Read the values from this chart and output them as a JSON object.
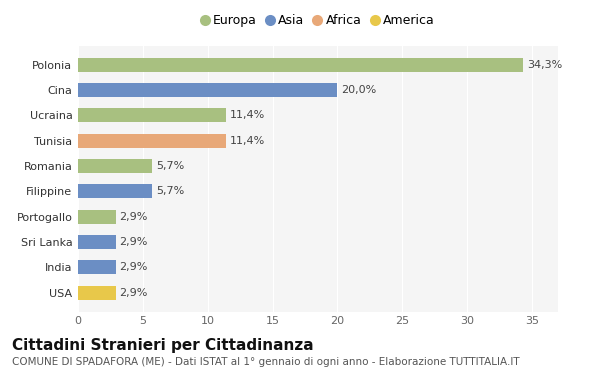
{
  "categories": [
    "USA",
    "India",
    "Sri Lanka",
    "Portogallo",
    "Filippine",
    "Romania",
    "Tunisia",
    "Ucraina",
    "Cina",
    "Polonia"
  ],
  "values": [
    2.9,
    2.9,
    2.9,
    2.9,
    5.7,
    5.7,
    11.4,
    11.4,
    20.0,
    34.3
  ],
  "labels": [
    "2,9%",
    "2,9%",
    "2,9%",
    "2,9%",
    "5,7%",
    "5,7%",
    "11,4%",
    "11,4%",
    "20,0%",
    "34,3%"
  ],
  "colors": [
    "#e8c84a",
    "#6b8ec4",
    "#6b8ec4",
    "#a8c080",
    "#6b8ec4",
    "#a8c080",
    "#e8a878",
    "#a8c080",
    "#6b8ec4",
    "#a8c080"
  ],
  "legend_labels": [
    "Europa",
    "Asia",
    "Africa",
    "America"
  ],
  "legend_colors": [
    "#a8c080",
    "#6b8ec4",
    "#e8a878",
    "#e8c84a"
  ],
  "title": "Cittadini Stranieri per Cittadinanza",
  "subtitle": "COMUNE DI SPADAFORA (ME) - Dati ISTAT al 1° gennaio di ogni anno - Elaborazione TUTTITALIA.IT",
  "xlim": [
    0,
    37
  ],
  "xticks": [
    0,
    5,
    10,
    15,
    20,
    25,
    30,
    35
  ],
  "background_color": "#ffffff",
  "plot_bg_color": "#f5f5f5",
  "bar_height": 0.55,
  "title_fontsize": 11,
  "subtitle_fontsize": 7.5,
  "label_fontsize": 8,
  "tick_fontsize": 8,
  "legend_fontsize": 9
}
